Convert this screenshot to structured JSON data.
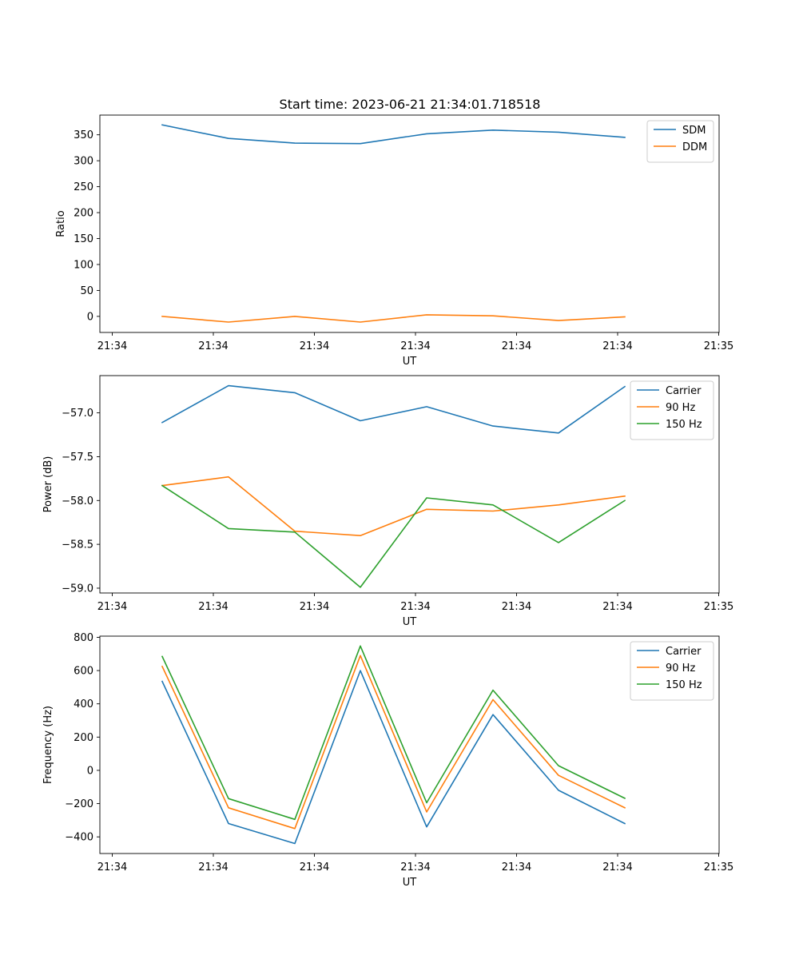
{
  "title": "Start time: 2023-06-21 21:34:01.718518",
  "colors": {
    "blue": "#1f77b4",
    "orange": "#ff7f0e",
    "green": "#2ca02c"
  },
  "chart_data": [
    {
      "type": "line",
      "xlabel": "UT",
      "ylabel": "Ratio",
      "x_tick_labels": [
        "21:34",
        "21:34",
        "21:34",
        "21:34",
        "21:34",
        "21:34",
        "21:35"
      ],
      "y_ticks": [
        0,
        50,
        100,
        150,
        200,
        250,
        300,
        350
      ],
      "ylim": [
        -31,
        388
      ],
      "legend": "top-right",
      "series": [
        {
          "name": "SDM",
          "color": "#1f77b4",
          "values": [
            369,
            343,
            334,
            333,
            352,
            359,
            355,
            345
          ]
        },
        {
          "name": "DDM",
          "color": "#ff7f0e",
          "values": [
            0,
            -11,
            0,
            -11,
            3,
            1,
            -8,
            -1
          ]
        }
      ]
    },
    {
      "type": "line",
      "xlabel": "UT",
      "ylabel": "Power (dB)",
      "x_tick_labels": [
        "21:34",
        "21:34",
        "21:34",
        "21:34",
        "21:34",
        "21:34",
        "21:35"
      ],
      "y_ticks": [
        -59.0,
        -58.5,
        -58.0,
        -57.5,
        -57.0
      ],
      "y_tick_labels": [
        "−59.0",
        "−58.5",
        "−58.0",
        "−57.5",
        "−57.0"
      ],
      "ylim": [
        -59.055,
        -56.575
      ],
      "legend": "top-right",
      "series": [
        {
          "name": "Carrier",
          "color": "#1f77b4",
          "values": [
            -57.11,
            -56.69,
            -56.77,
            -57.09,
            -56.93,
            -57.15,
            -57.23,
            -56.7
          ]
        },
        {
          "name": "90 Hz",
          "color": "#ff7f0e",
          "values": [
            -57.83,
            -57.73,
            -58.35,
            -58.4,
            -58.1,
            -58.12,
            -58.05,
            -57.95
          ]
        },
        {
          "name": "150 Hz",
          "color": "#2ca02c",
          "values": [
            -57.83,
            -58.32,
            -58.36,
            -58.99,
            -57.97,
            -58.05,
            -58.48,
            -58.0
          ]
        }
      ]
    },
    {
      "type": "line",
      "xlabel": "UT",
      "ylabel": "Frequency (Hz)",
      "x_tick_labels": [
        "21:34",
        "21:34",
        "21:34",
        "21:34",
        "21:34",
        "21:34",
        "21:35"
      ],
      "y_ticks": [
        -400,
        -200,
        0,
        200,
        400,
        600,
        800
      ],
      "y_tick_labels": [
        "−400",
        "−200",
        "0",
        "200",
        "400",
        "600",
        "800"
      ],
      "ylim": [
        -500,
        807
      ],
      "legend": "top-right",
      "series": [
        {
          "name": "Carrier",
          "color": "#1f77b4",
          "values": [
            535,
            -320,
            -440,
            600,
            -340,
            335,
            -120,
            -320
          ]
        },
        {
          "name": "90 Hz",
          "color": "#ff7f0e",
          "values": [
            625,
            -225,
            -350,
            690,
            -250,
            425,
            -30,
            -225
          ]
        },
        {
          "name": "150 Hz",
          "color": "#2ca02c",
          "values": [
            685,
            -170,
            -295,
            748,
            -195,
            482,
            28,
            -168
          ]
        }
      ]
    }
  ]
}
